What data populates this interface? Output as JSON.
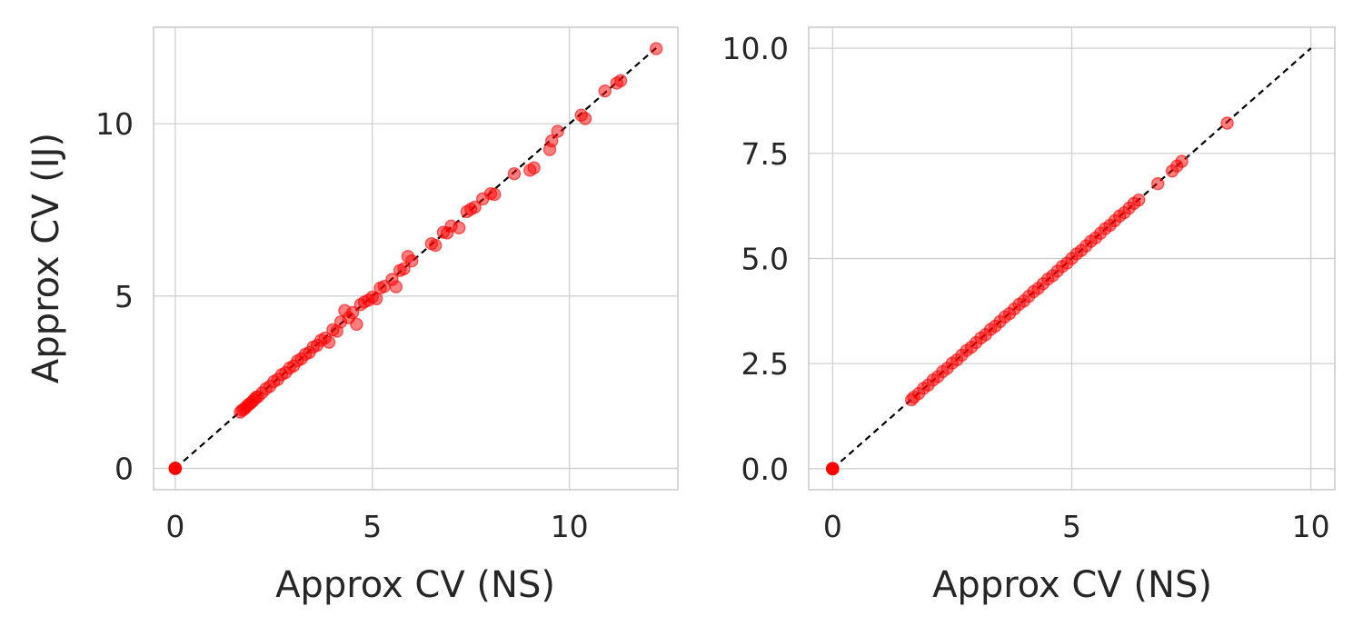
{
  "chart_data": [
    {
      "type": "scatter",
      "xlabel": "Approx CV (NS)",
      "ylabel": "Approx CV (IJ)",
      "xlim": [
        -0.55,
        12.75
      ],
      "ylim": [
        -0.62,
        12.8
      ],
      "xticks": [
        0,
        5,
        10
      ],
      "xtick_labels": [
        "0",
        "5",
        "10"
      ],
      "yticks": [
        0,
        5,
        10
      ],
      "ytick_labels": [
        "0",
        "5",
        "10"
      ],
      "grid": true,
      "reference_line": {
        "style": "dashed",
        "color": "#000000",
        "x": [
          0,
          12.2
        ],
        "y": [
          0,
          12.2
        ]
      },
      "marker_color": "#ff0000",
      "marker_alpha": 0.5,
      "points": [
        [
          0,
          0
        ],
        [
          0,
          0
        ],
        [
          0,
          0
        ],
        [
          0,
          0
        ],
        [
          0,
          0
        ],
        [
          0,
          0
        ],
        [
          1.65,
          1.63
        ],
        [
          1.7,
          1.69
        ],
        [
          1.75,
          1.72
        ],
        [
          1.8,
          1.78
        ],
        [
          1.85,
          1.84
        ],
        [
          1.9,
          1.88
        ],
        [
          1.95,
          1.93
        ],
        [
          2.0,
          1.99
        ],
        [
          2.05,
          2.06
        ],
        [
          2.1,
          2.08
        ],
        [
          2.2,
          2.19
        ],
        [
          2.3,
          2.31
        ],
        [
          2.4,
          2.38
        ],
        [
          2.5,
          2.52
        ],
        [
          2.6,
          2.58
        ],
        [
          2.7,
          2.72
        ],
        [
          2.8,
          2.78
        ],
        [
          2.9,
          2.91
        ],
        [
          3.0,
          2.97
        ],
        [
          3.1,
          3.12
        ],
        [
          3.2,
          3.18
        ],
        [
          3.3,
          3.31
        ],
        [
          3.4,
          3.36
        ],
        [
          3.5,
          3.52
        ],
        [
          3.6,
          3.57
        ],
        [
          3.7,
          3.72
        ],
        [
          3.8,
          3.78
        ],
        [
          3.9,
          3.66
        ],
        [
          4.0,
          4.02
        ],
        [
          4.1,
          3.98
        ],
        [
          4.2,
          4.25
        ],
        [
          4.3,
          4.58
        ],
        [
          4.4,
          4.37
        ],
        [
          4.5,
          4.52
        ],
        [
          4.6,
          4.18
        ],
        [
          4.7,
          4.75
        ],
        [
          4.8,
          4.83
        ],
        [
          4.9,
          4.88
        ],
        [
          5.0,
          4.97
        ],
        [
          5.1,
          4.92
        ],
        [
          5.2,
          5.23
        ],
        [
          5.3,
          5.28
        ],
        [
          5.5,
          5.48
        ],
        [
          5.6,
          5.27
        ],
        [
          5.7,
          5.74
        ],
        [
          5.8,
          5.79
        ],
        [
          5.9,
          6.15
        ],
        [
          6.0,
          6.02
        ],
        [
          6.5,
          6.52
        ],
        [
          6.6,
          6.47
        ],
        [
          6.8,
          6.85
        ],
        [
          6.9,
          6.83
        ],
        [
          7.0,
          7.03
        ],
        [
          7.2,
          6.98
        ],
        [
          7.4,
          7.45
        ],
        [
          7.5,
          7.52
        ],
        [
          7.6,
          7.58
        ],
        [
          7.8,
          7.82
        ],
        [
          8.0,
          7.97
        ],
        [
          8.1,
          7.95
        ],
        [
          8.6,
          8.55
        ],
        [
          9.0,
          8.65
        ],
        [
          9.1,
          8.72
        ],
        [
          9.5,
          9.25
        ],
        [
          9.55,
          9.5
        ],
        [
          9.7,
          9.78
        ],
        [
          10.3,
          10.25
        ],
        [
          10.4,
          10.15
        ],
        [
          10.9,
          10.95
        ],
        [
          11.2,
          11.18
        ],
        [
          11.3,
          11.25
        ],
        [
          12.2,
          12.18
        ]
      ]
    },
    {
      "type": "scatter",
      "xlabel": "Approx CV (NS)",
      "ylabel": "",
      "xlim": [
        -0.5,
        10.5
      ],
      "ylim": [
        -0.5,
        10.5
      ],
      "xticks": [
        0,
        5,
        10
      ],
      "xtick_labels": [
        "0",
        "5",
        "10"
      ],
      "yticks": [
        0,
        2.5,
        5,
        7.5,
        10
      ],
      "ytick_labels": [
        "0.0",
        "2.5",
        "5.0",
        "7.5",
        "10.0"
      ],
      "grid": true,
      "reference_line": {
        "style": "dashed",
        "color": "#000000",
        "x": [
          0,
          10
        ],
        "y": [
          0,
          10
        ]
      },
      "marker_color": "#ff0000",
      "marker_alpha": 0.5,
      "points": [
        [
          0,
          0
        ],
        [
          0,
          0
        ],
        [
          0,
          0
        ],
        [
          0,
          0
        ],
        [
          0,
          0
        ],
        [
          0,
          0
        ],
        [
          1.65,
          1.64
        ],
        [
          1.7,
          1.7
        ],
        [
          1.8,
          1.79
        ],
        [
          1.9,
          1.91
        ],
        [
          2.0,
          1.99
        ],
        [
          2.1,
          2.11
        ],
        [
          2.2,
          2.19
        ],
        [
          2.3,
          2.31
        ],
        [
          2.4,
          2.39
        ],
        [
          2.5,
          2.51
        ],
        [
          2.6,
          2.59
        ],
        [
          2.7,
          2.7
        ],
        [
          2.8,
          2.81
        ],
        [
          2.9,
          2.89
        ],
        [
          3.0,
          3.0
        ],
        [
          3.1,
          3.11
        ],
        [
          3.2,
          3.19
        ],
        [
          3.3,
          3.31
        ],
        [
          3.4,
          3.39
        ],
        [
          3.5,
          3.5
        ],
        [
          3.6,
          3.61
        ],
        [
          3.7,
          3.69
        ],
        [
          3.8,
          3.8
        ],
        [
          3.9,
          3.91
        ],
        [
          4.0,
          3.99
        ],
        [
          4.1,
          4.1
        ],
        [
          4.2,
          4.21
        ],
        [
          4.3,
          4.29
        ],
        [
          4.4,
          4.4
        ],
        [
          4.5,
          4.51
        ],
        [
          4.6,
          4.59
        ],
        [
          4.7,
          4.7
        ],
        [
          4.8,
          4.81
        ],
        [
          4.9,
          4.89
        ],
        [
          5.0,
          5.0
        ],
        [
          5.1,
          5.11
        ],
        [
          5.2,
          5.19
        ],
        [
          5.3,
          5.3
        ],
        [
          5.4,
          5.41
        ],
        [
          5.5,
          5.49
        ],
        [
          5.6,
          5.6
        ],
        [
          5.7,
          5.71
        ],
        [
          5.8,
          5.79
        ],
        [
          5.9,
          5.9
        ],
        [
          6.0,
          6.01
        ],
        [
          6.1,
          6.09
        ],
        [
          6.2,
          6.2
        ],
        [
          6.3,
          6.31
        ],
        [
          6.4,
          6.39
        ],
        [
          6.8,
          6.78
        ],
        [
          7.1,
          7.08
        ],
        [
          7.2,
          7.2
        ],
        [
          7.3,
          7.31
        ],
        [
          8.25,
          8.22
        ]
      ]
    }
  ]
}
